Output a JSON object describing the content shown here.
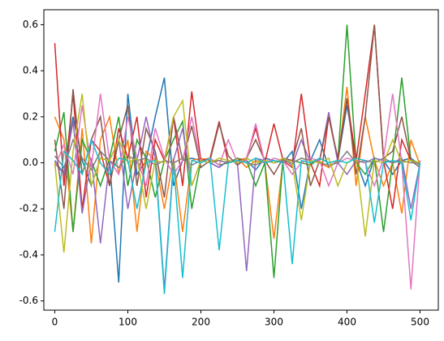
{
  "chart_data": {
    "type": "line",
    "x": [
      0,
      12.5,
      25,
      37.5,
      50,
      62.5,
      75,
      87.5,
      100,
      112.5,
      125,
      137.5,
      150,
      162.5,
      175,
      187.5,
      200,
      212.5,
      225,
      237.5,
      250,
      262.5,
      275,
      287.5,
      300,
      312.5,
      325,
      337.5,
      350,
      362.5,
      375,
      387.5,
      400,
      412.5,
      425,
      437.5,
      450,
      462.5,
      475,
      487.5,
      500
    ],
    "series": [
      {
        "color": "#1f77b4",
        "values": [
          0.01,
          -0.05,
          0.2,
          0.01,
          -0.1,
          0.02,
          0.01,
          -0.52,
          0.3,
          -0.05,
          0.01,
          0.2,
          0.37,
          -0.1,
          0.01,
          0.02,
          0.01,
          0.0,
          -0.02,
          0.01,
          0.0,
          0.01,
          -0.03,
          0.02,
          0.01,
          0.0,
          0.05,
          -0.2,
          0.01,
          0.1,
          -0.02,
          0.01,
          0.25,
          0.01,
          -0.1,
          0.02,
          0.01,
          -0.05,
          0.01,
          0.02,
          -0.01
        ]
      },
      {
        "color": "#ff7f0e",
        "values": [
          0.2,
          0.1,
          -0.3,
          0.15,
          -0.35,
          0.1,
          0.2,
          -0.05,
          0.1,
          -0.3,
          0.05,
          0.01,
          -0.2,
          0.02,
          -0.3,
          0.01,
          0.02,
          0.01,
          0.01,
          0.0,
          0.02,
          -0.02,
          0.01,
          0.0,
          -0.33,
          0.01,
          0.0,
          0.02,
          0.01,
          0.0,
          -0.02,
          0.01,
          0.33,
          -0.1,
          0.2,
          0.01,
          -0.1,
          0.0,
          -0.22,
          0.1,
          -0.01
        ]
      },
      {
        "color": "#2ca02c",
        "values": [
          0.05,
          0.22,
          -0.3,
          0.1,
          0.01,
          -0.1,
          0.02,
          0.2,
          -0.1,
          0.1,
          0.02,
          -0.15,
          0.01,
          0.1,
          0.18,
          -0.2,
          0.01,
          0.02,
          -0.01,
          0.0,
          0.02,
          0.01,
          -0.1,
          0.0,
          -0.5,
          0.02,
          0.01,
          0.0,
          -0.01,
          0.02,
          0.0,
          0.01,
          0.6,
          0.0,
          -0.05,
          0.02,
          -0.3,
          0.01,
          0.37,
          0.01,
          0.0
        ]
      },
      {
        "color": "#d62728",
        "values": [
          0.52,
          -0.1,
          0.3,
          -0.2,
          0.1,
          0.05,
          -0.1,
          0.15,
          0.02,
          0.2,
          -0.15,
          0.1,
          0.01,
          0.2,
          -0.1,
          0.31,
          0.01,
          0.02,
          0.18,
          0.0,
          0.01,
          0.02,
          0.15,
          0.0,
          0.17,
          0.01,
          -0.02,
          0.3,
          0.0,
          -0.1,
          0.2,
          0.01,
          0.28,
          0.01,
          0.3,
          0.6,
          0.01,
          -0.2,
          0.1,
          0.01,
          0.0
        ]
      },
      {
        "color": "#9467bd",
        "values": [
          0.0,
          -0.05,
          0.18,
          -0.22,
          0.02,
          -0.35,
          0.01,
          0.1,
          -0.2,
          0.01,
          0.2,
          0.02,
          -0.55,
          0.01,
          0.15,
          -0.1,
          0.01,
          0.0,
          -0.02,
          0.01,
          0.0,
          -0.47,
          0.02,
          0.01,
          0.0,
          0.02,
          -0.01,
          0.1,
          0.0,
          0.01,
          0.22,
          0.0,
          -0.05,
          0.01,
          0.0,
          0.02,
          0.01,
          0.0,
          0.02,
          -0.2,
          0.0
        ]
      },
      {
        "color": "#8c564b",
        "values": [
          0.1,
          -0.2,
          0.32,
          -0.05,
          0.1,
          0.2,
          -0.1,
          0.1,
          0.25,
          -0.1,
          0.15,
          0.05,
          -0.15,
          0.2,
          0.01,
          0.16,
          -0.02,
          0.01,
          0.17,
          0.03,
          -0.01,
          0.02,
          0.1,
          0.01,
          -0.05,
          0.02,
          0.01,
          0.15,
          -0.1,
          0.01,
          0.2,
          0.02,
          0.28,
          -0.05,
          0.2,
          0.6,
          0.02,
          0.05,
          0.2,
          0.01,
          -0.02
        ]
      },
      {
        "color": "#e377c2",
        "values": [
          -0.02,
          0.08,
          -0.05,
          0.25,
          -0.02,
          0.3,
          0.01,
          -0.05,
          0.2,
          0.02,
          -0.1,
          0.15,
          0.02,
          -0.05,
          0.01,
          0.2,
          0.0,
          0.02,
          -0.01,
          0.1,
          0.0,
          0.01,
          0.17,
          0.0,
          0.02,
          0.01,
          -0.05,
          0.0,
          0.02,
          0.01,
          -0.1,
          0.0,
          0.02,
          0.01,
          0.0,
          -0.1,
          0.02,
          0.3,
          0.0,
          -0.55,
          0.01
        ]
      },
      {
        "color": "#7f7f7f",
        "values": [
          0.03,
          -0.02,
          0.1,
          0.02,
          -0.03,
          0.05,
          0.01,
          -0.02,
          0.03,
          0.01,
          0.02,
          -0.01,
          0.01,
          0.0,
          0.02,
          -0.01,
          0.01,
          0.0,
          0.01,
          0.0,
          0.01,
          0.0,
          -0.01,
          0.01,
          0.0,
          0.01,
          0.0,
          0.02,
          0.01,
          0.0,
          -0.01,
          0.0,
          0.05,
          0.0,
          0.01,
          0.0,
          0.02,
          0.0,
          0.01,
          0.0,
          0.0
        ]
      },
      {
        "color": "#bcbd22",
        "values": [
          0.0,
          -0.39,
          0.05,
          0.3,
          -0.1,
          0.02,
          0.01,
          0.1,
          0.0,
          0.02,
          -0.2,
          0.01,
          0.0,
          0.2,
          0.27,
          -0.1,
          0.01,
          0.0,
          0.02,
          0.01,
          0.0,
          0.02,
          0.0,
          0.01,
          0.0,
          0.02,
          0.0,
          -0.25,
          0.01,
          0.0,
          0.02,
          -0.1,
          0.0,
          0.02,
          -0.32,
          0.01,
          0.0,
          0.1,
          0.0,
          0.01,
          0.0
        ]
      },
      {
        "color": "#17becf",
        "values": [
          -0.3,
          0.05,
          0.01,
          -0.05,
          0.1,
          0.0,
          -0.05,
          0.02,
          0.01,
          -0.2,
          0.0,
          0.01,
          -0.57,
          0.0,
          -0.5,
          0.01,
          0.0,
          0.02,
          -0.38,
          0.0,
          0.01,
          0.0,
          0.02,
          0.0,
          0.01,
          0.0,
          -0.44,
          0.01,
          0.0,
          0.02,
          0.0,
          0.01,
          0.0,
          0.02,
          0.01,
          -0.26,
          0.0,
          0.01,
          0.0,
          -0.25,
          0.0
        ]
      }
    ],
    "xlim": [
      -15,
      525
    ],
    "ylim": [
      -0.64,
      0.665
    ],
    "xticks": [
      0,
      100,
      200,
      300,
      400,
      500
    ],
    "yticks": [
      -0.6,
      -0.4,
      -0.2,
      {
        "value": 0,
        "label": "0.0"
      },
      0.2,
      0.4,
      0.6
    ]
  }
}
